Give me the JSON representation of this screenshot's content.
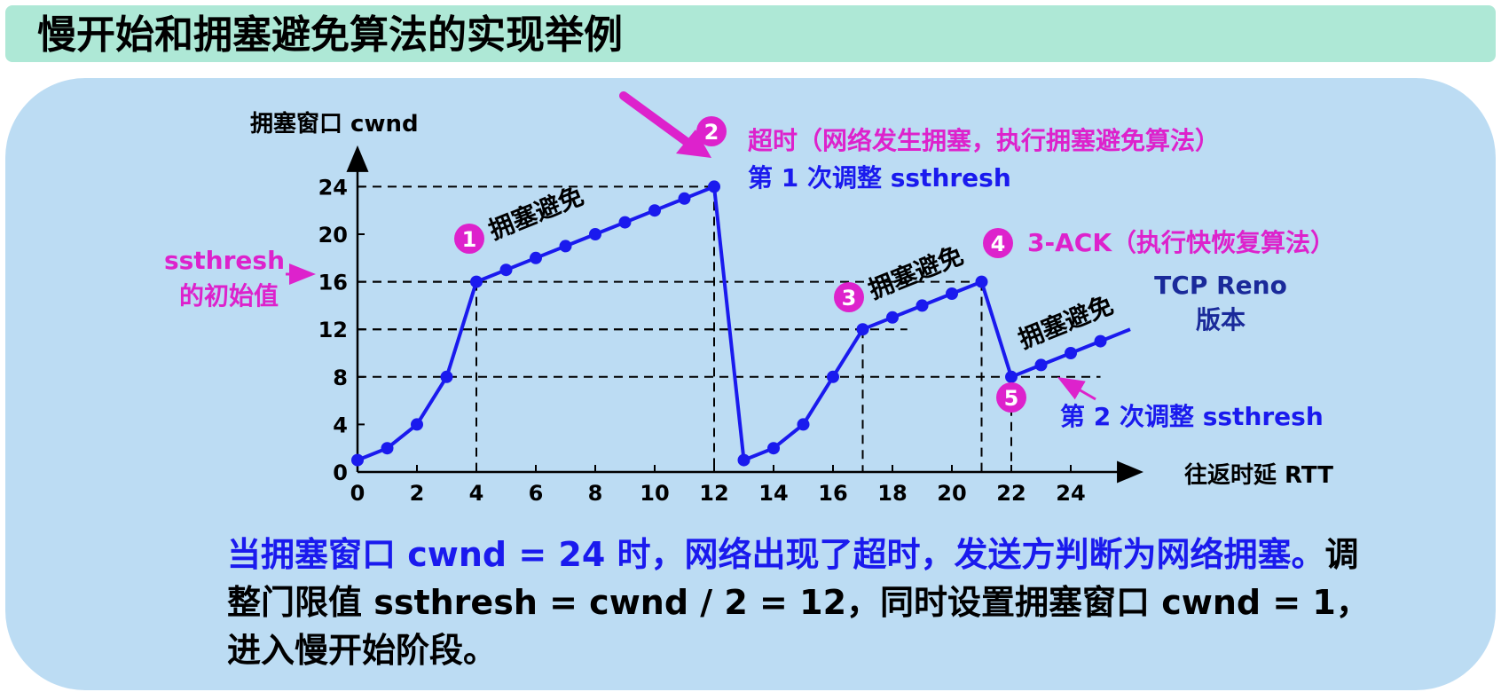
{
  "title": "慢开始和拥塞避免算法的实现举例",
  "colors": {
    "title_bg": "#aee8d6",
    "panel_bg": "#bcdcf3",
    "series": "#1a1aee",
    "highlight": "#dd22cc",
    "axis": "#000000"
  },
  "chart_data": {
    "type": "line",
    "ylabel": "拥塞窗口  cwnd",
    "xlabel": "往返时延 RTT",
    "xlim": [
      0,
      25
    ],
    "ylim": [
      0,
      24
    ],
    "xticks": [
      0,
      2,
      4,
      6,
      8,
      10,
      12,
      14,
      16,
      18,
      20,
      22,
      24
    ],
    "yticks": [
      0,
      4,
      8,
      12,
      16,
      20,
      24
    ],
    "series": [
      {
        "name": "TCP Reno 版本",
        "x": [
          0,
          1,
          2,
          3,
          4,
          5,
          6,
          7,
          8,
          9,
          10,
          11,
          12,
          13,
          14,
          15,
          16,
          17,
          18,
          19,
          20,
          21,
          22,
          23,
          24,
          25,
          26
        ],
        "y": [
          1,
          2,
          4,
          8,
          16,
          17,
          18,
          19,
          20,
          21,
          22,
          23,
          24,
          1,
          2,
          4,
          8,
          12,
          13,
          14,
          15,
          16,
          8,
          9,
          10,
          11,
          12
        ]
      }
    ],
    "annotations": {
      "ssthresh_initial": "ssthresh\n的初始值",
      "ca1": "拥塞避免",
      "ca2": "拥塞避免",
      "ca3": "拥塞避免",
      "timeout": "超时（网络发生拥塞，执行拥塞避免算法）",
      "adjust1": "第 1 次调整 ssthresh",
      "three_ack": "3-ACK（执行快恢复算法）",
      "adjust2": "第 2 次调整 ssthresh",
      "reno_line1": "TCP Reno",
      "reno_line2": "版本"
    },
    "markers": [
      "1",
      "2",
      "3",
      "4",
      "5"
    ]
  },
  "note": {
    "part1": "当拥塞窗口 cwnd = 24 时，网络出现了超时，发送方判断为网络拥塞。",
    "part2": "调整门限值 ssthresh = cwnd / 2 = 12，同时设置拥塞窗口 cwnd = 1，进入慢开始阶段。"
  }
}
